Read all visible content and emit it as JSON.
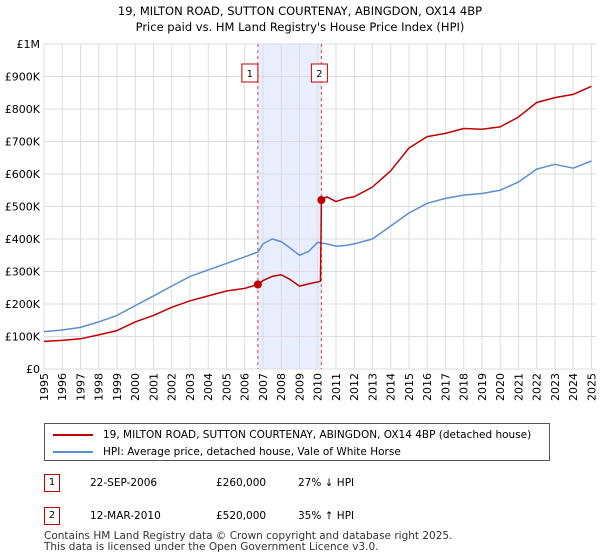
{
  "chart_data": {
    "type": "line",
    "title": "19, MILTON ROAD, SUTTON COURTENAY, ABINGDON, OX14 4BP",
    "subtitle": "Price paid vs. HM Land Registry's House Price Index (HPI)",
    "xlabel": "",
    "ylabel": "",
    "xlim": [
      1995,
      2025.25
    ],
    "ylim": [
      0,
      1000000
    ],
    "x_ticks": [
      "1995",
      "1996",
      "1997",
      "1998",
      "1999",
      "2000",
      "2001",
      "2002",
      "2003",
      "2004",
      "2005",
      "2006",
      "2007",
      "2008",
      "2009",
      "2010",
      "2011",
      "2012",
      "2013",
      "2014",
      "2015",
      "2016",
      "2017",
      "2018",
      "2019",
      "2020",
      "2021",
      "2022",
      "2023",
      "2024",
      "2025"
    ],
    "y_ticks": [
      {
        "value": 0,
        "label": "£0"
      },
      {
        "value": 100000,
        "label": "£100K"
      },
      {
        "value": 200000,
        "label": "£200K"
      },
      {
        "value": 300000,
        "label": "£300K"
      },
      {
        "value": 400000,
        "label": "£400K"
      },
      {
        "value": 500000,
        "label": "£500K"
      },
      {
        "value": 600000,
        "label": "£600K"
      },
      {
        "value": 700000,
        "label": "£700K"
      },
      {
        "value": 800000,
        "label": "£800K"
      },
      {
        "value": 900000,
        "label": "£900K"
      },
      {
        "value": 1000000,
        "label": "£1M"
      }
    ],
    "grid": true,
    "shaded_region": {
      "from": 2006.72,
      "to": 2010.2,
      "color": "#e8eeff"
    },
    "series": [
      {
        "name": "19, MILTON ROAD, SUTTON COURTENAY, ABINGDON, OX14 4BP (detached house)",
        "color": "#c00000",
        "x": [
          1995,
          1996,
          1997,
          1998,
          1999,
          2000,
          2001,
          2002,
          2003,
          2004,
          2005,
          2006,
          2006.72,
          2007,
          2007.5,
          2008,
          2008.5,
          2009,
          2009.5,
          2010.15,
          2010.2,
          2010.5,
          2011,
          2011.5,
          2012,
          2013,
          2014,
          2015,
          2016,
          2017,
          2018,
          2019,
          2020,
          2021,
          2022,
          2023,
          2024,
          2025
        ],
        "values": [
          85000,
          88000,
          93000,
          105000,
          118000,
          145000,
          165000,
          190000,
          210000,
          225000,
          240000,
          248000,
          260000,
          272000,
          285000,
          290000,
          275000,
          255000,
          262000,
          270000,
          520000,
          530000,
          515000,
          525000,
          530000,
          560000,
          610000,
          680000,
          715000,
          725000,
          740000,
          738000,
          745000,
          775000,
          820000,
          835000,
          845000,
          870000
        ]
      },
      {
        "name": "HPI: Average price, detached house, Vale of White Horse",
        "color": "#5b8fd4",
        "x": [
          1995,
          1996,
          1997,
          1998,
          1999,
          2000,
          2001,
          2002,
          2003,
          2004,
          2005,
          2006,
          2006.72,
          2007,
          2007.5,
          2008,
          2008.5,
          2009,
          2009.5,
          2010,
          2010.5,
          2011,
          2011.5,
          2012,
          2013,
          2014,
          2015,
          2016,
          2017,
          2018,
          2019,
          2020,
          2021,
          2022,
          2023,
          2024,
          2025
        ],
        "values": [
          115000,
          120000,
          128000,
          145000,
          165000,
          195000,
          225000,
          255000,
          285000,
          305000,
          325000,
          345000,
          360000,
          385000,
          400000,
          392000,
          372000,
          350000,
          362000,
          390000,
          385000,
          378000,
          380000,
          385000,
          400000,
          440000,
          480000,
          510000,
          525000,
          535000,
          540000,
          550000,
          575000,
          615000,
          630000,
          618000,
          640000
        ]
      }
    ],
    "sales": [
      {
        "label": "1",
        "x": 2006.72,
        "value": 260000
      },
      {
        "label": "2",
        "x": 2010.2,
        "value": 520000
      }
    ]
  },
  "legend": {
    "property_label": "19, MILTON ROAD, SUTTON COURTENAY, ABINGDON, OX14 4BP (detached house)",
    "hpi_label": "HPI: Average price, detached house, Vale of White Horse",
    "property_color": "#c00000",
    "hpi_color": "#5b8fd4"
  },
  "annotations": [
    {
      "badge": "1",
      "date": "22-SEP-2006",
      "price": "£260,000",
      "hpi": "27% ↓ HPI"
    },
    {
      "badge": "2",
      "date": "12-MAR-2010",
      "price": "£520,000",
      "hpi": "35% ↑ HPI"
    }
  ],
  "footer": {
    "line1": "Contains HM Land Registry data © Crown copyright and database right 2025.",
    "line2": "This data is licensed under the Open Government Licence v3.0."
  }
}
